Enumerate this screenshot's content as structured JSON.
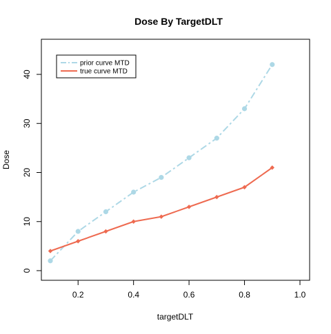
{
  "chart_data": {
    "type": "line",
    "title": "Dose By TargetDLT",
    "xlabel": "targetDLT",
    "ylabel": "Dose",
    "xlim": [
      0.1,
      1.0
    ],
    "ylim": [
      0,
      45
    ],
    "xticks": [
      0.2,
      0.4,
      0.6,
      0.8,
      1.0
    ],
    "xtick_labels": [
      "0.2",
      "0.4",
      "0.6",
      "0.8",
      "1.0"
    ],
    "yticks": [
      0,
      10,
      20,
      30,
      40
    ],
    "ytick_labels": [
      "0",
      "10",
      "20",
      "30",
      "40"
    ],
    "grid": false,
    "legend_position": "top-left",
    "x": [
      0.1,
      0.2,
      0.3,
      0.4,
      0.5,
      0.6,
      0.7,
      0.8,
      0.9
    ],
    "series": [
      {
        "name": "prior curve MTD",
        "values": [
          2,
          8,
          12,
          16,
          19,
          23,
          27,
          33,
          42
        ],
        "color": "#ADD8E6",
        "line_style": "dashdot",
        "marker": "circle"
      },
      {
        "name": "true curve MTD",
        "values": [
          4,
          6,
          8,
          10,
          11,
          13,
          15,
          17,
          21
        ],
        "color": "#EE6A50",
        "line_style": "solid",
        "marker": "diamond"
      }
    ]
  }
}
